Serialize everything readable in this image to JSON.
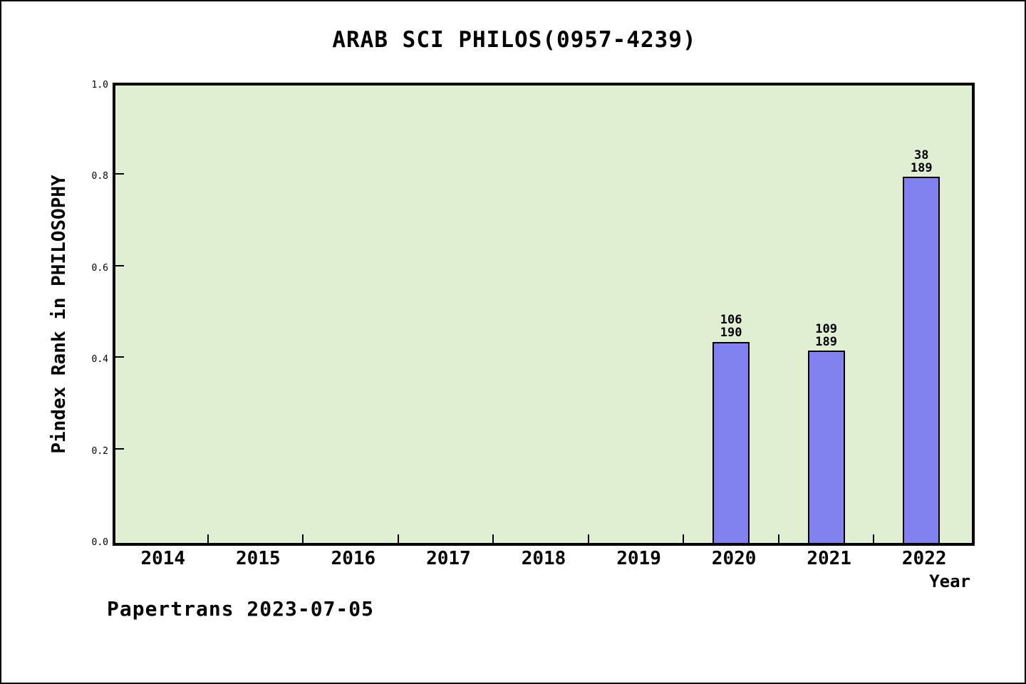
{
  "page": {
    "background": "#ffffff",
    "border_color": "#000000"
  },
  "chart_data": {
    "type": "bar",
    "title": "ARAB SCI PHILOS(0957-4239)",
    "xlabel": "Year",
    "ylabel": "Pindex Rank in PHILOSOPHY",
    "categories": [
      "2014",
      "2015",
      "2016",
      "2017",
      "2018",
      "2019",
      "2020",
      "2021",
      "2022"
    ],
    "values": [
      null,
      null,
      null,
      null,
      null,
      null,
      0.44,
      0.42,
      0.8
    ],
    "annotations": [
      {
        "category": "2020",
        "lines": [
          "106",
          "190"
        ]
      },
      {
        "category": "2021",
        "lines": [
          "109",
          "189"
        ]
      },
      {
        "category": "2022",
        "lines": [
          "38",
          "189"
        ]
      }
    ],
    "ylim": [
      0.0,
      1.0
    ],
    "yticks": [
      "0.0",
      "0.2",
      "0.4",
      "0.6",
      "0.8",
      "1.0"
    ],
    "grid": false,
    "legend": null,
    "colors": {
      "bar_fill": "#8182f0",
      "bar_border": "#000000",
      "plot_bg": "#e0efd2",
      "plot_border": "#000000"
    }
  },
  "footer": {
    "text": "Papertrans 2023-07-05"
  }
}
